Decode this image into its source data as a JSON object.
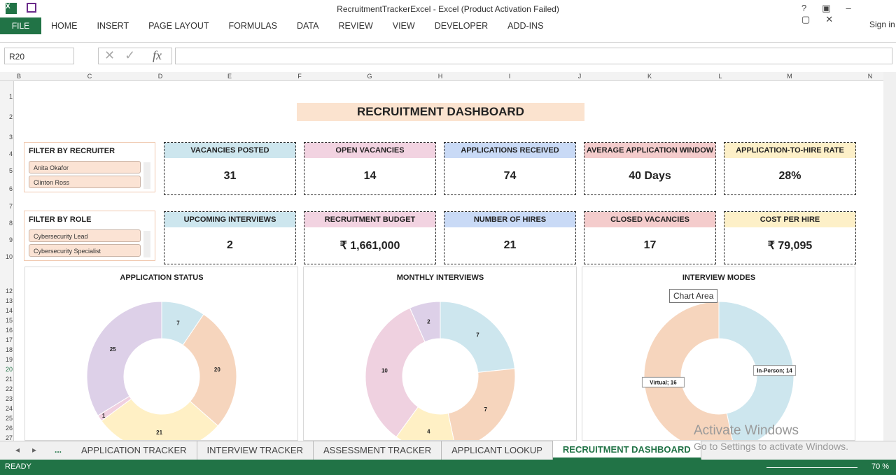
{
  "window": {
    "title": "RecruitmentTrackerExcel - Excel (Product Activation Failed)",
    "sign_in": "Sign in"
  },
  "ribbon": {
    "file": "FILE",
    "tabs": [
      "HOME",
      "INSERT",
      "PAGE LAYOUT",
      "FORMULAS",
      "DATA",
      "REVIEW",
      "VIEW",
      "DEVELOPER",
      "ADD-INS"
    ]
  },
  "formula_bar": {
    "name_box": "R20",
    "fx": "fx"
  },
  "columns": [
    "B",
    "C",
    "D",
    "E",
    "F",
    "G",
    "H",
    "I",
    "J",
    "K",
    "L",
    "M",
    "N"
  ],
  "rows": [
    "1",
    "2",
    "3",
    "4",
    "5",
    "6",
    "7",
    "8",
    "9",
    "10",
    "12",
    "13",
    "14",
    "15",
    "16",
    "17",
    "18",
    "19",
    "20",
    "21",
    "22",
    "23",
    "24",
    "25",
    "26",
    "27"
  ],
  "dashboard": {
    "title": "RECRUITMENT DASHBOARD",
    "slicers": [
      {
        "title": "FILTER BY RECRUITER",
        "items": [
          "Anita Okafor",
          "Clinton Ross"
        ]
      },
      {
        "title": "FILTER BY ROLE",
        "items": [
          "Cybersecurity Lead",
          "Cybersecurity Specialist"
        ]
      }
    ],
    "kpis": [
      {
        "title": "VACANCIES POSTED",
        "value": "31",
        "color": "#cde6ee"
      },
      {
        "title": "OPEN VACANCIES",
        "value": "14",
        "color": "#f2d3e1"
      },
      {
        "title": "APPLICATIONS RECEIVED",
        "value": "74",
        "color": "#c9daf6"
      },
      {
        "title": "AVERAGE APPLICATION WINDOW",
        "value": "40 Days",
        "color": "#f4cccc"
      },
      {
        "title": "APPLICATION-TO-HIRE RATE",
        "value": "28%",
        "color": "#fdf0c8"
      },
      {
        "title": "UPCOMING INTERVIEWS",
        "value": "2",
        "color": "#cde6ee"
      },
      {
        "title": "RECRUITMENT BUDGET",
        "value": "₹ 1,661,000",
        "color": "#f2d3e1"
      },
      {
        "title": "NUMBER OF HIRES",
        "value": "21",
        "color": "#c9daf6"
      },
      {
        "title": "CLOSED VACANCIES",
        "value": "17",
        "color": "#f4cccc"
      },
      {
        "title": "COST PER HIRE",
        "value": "₹ 79,095",
        "color": "#fdf0c8"
      }
    ],
    "charts": [
      {
        "type": "donut",
        "title": "APPLICATION STATUS",
        "values": [
          7,
          20,
          21,
          1,
          25
        ],
        "colors": [
          "#cde6ee",
          "#f6d5bd",
          "#fff0c5",
          "#f0d0e0",
          "#ddd0e8"
        ]
      },
      {
        "type": "donut",
        "title": "MONTHLY INTERVIEWS",
        "values": [
          7,
          7,
          4,
          10,
          2
        ],
        "colors": [
          "#cde6ee",
          "#f6d5bd",
          "#fff0c5",
          "#efd1e0",
          "#ddd0e8"
        ]
      },
      {
        "type": "donut",
        "title": "INTERVIEW MODES",
        "values": [
          14,
          16
        ],
        "value_labels": [
          "In-Person; 14",
          "Virtual; 16"
        ],
        "colors": [
          "#cde6ee",
          "#f6d5bd"
        ]
      }
    ],
    "tooltip": "Chart Area"
  },
  "sheet_tabs": {
    "more": "...",
    "tabs": [
      "APPLICATION TRACKER",
      "INTERVIEW TRACKER",
      "ASSESSMENT TRACKER",
      "APPLICANT LOOKUP",
      "RECRUITMENT DASHBOARD"
    ],
    "active": 4
  },
  "status": {
    "ready": "READY",
    "zoom": "70 %"
  },
  "watermark": {
    "title": "Activate Windows",
    "subtitle": "Go to Settings to activate Windows."
  }
}
